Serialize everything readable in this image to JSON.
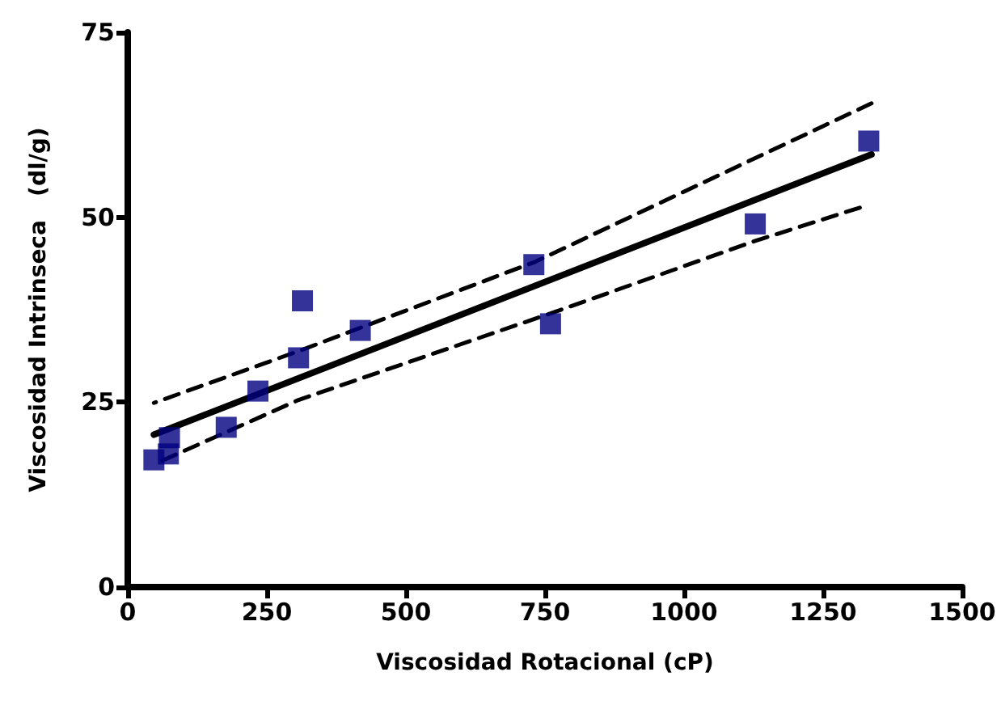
{
  "chart_data": {
    "type": "scatter",
    "xlabel": "Viscosidad Rotacional (cP)",
    "ylabel": "Viscosidad Intrinseca   (dl/g)",
    "xlim": [
      0,
      1500
    ],
    "xticks": [
      0,
      250,
      500,
      750,
      1000,
      1250,
      1500
    ],
    "ylim": [
      0,
      75
    ],
    "yticks": [
      0,
      25,
      50,
      75
    ],
    "grid": false,
    "series": [
      {
        "color": "#000080",
        "marker": "square",
        "x": [
          47,
          73,
          75,
          177,
          234,
          307,
          314,
          418,
          730,
          760,
          1128,
          1332
        ],
        "values": [
          17.2,
          18.0,
          20.2,
          21.6,
          26.5,
          31.0,
          38.7,
          34.7,
          43.6,
          35.6,
          49.1,
          60.3
        ]
      },
      {
        "type": "line",
        "color": "#000000",
        "marker": "none",
        "line_style": "solid",
        "x": [
          47,
          1337
        ],
        "values": [
          20.6,
          58.5
        ]
      },
      {
        "type": "line",
        "color": "#000000",
        "marker": "none",
        "line_style": "dashed",
        "x": [
          47,
          307,
          733,
          1128,
          1337
        ],
        "values": [
          24.9,
          31.9,
          44.0,
          58.0,
          65.4
        ]
      },
      {
        "type": "line",
        "color": "#000000",
        "marker": "none",
        "line_style": "dashed",
        "x": [
          47,
          307,
          760,
          1128,
          1316
        ],
        "values": [
          16.6,
          25.3,
          37.0,
          46.8,
          51.3
        ]
      }
    ]
  }
}
